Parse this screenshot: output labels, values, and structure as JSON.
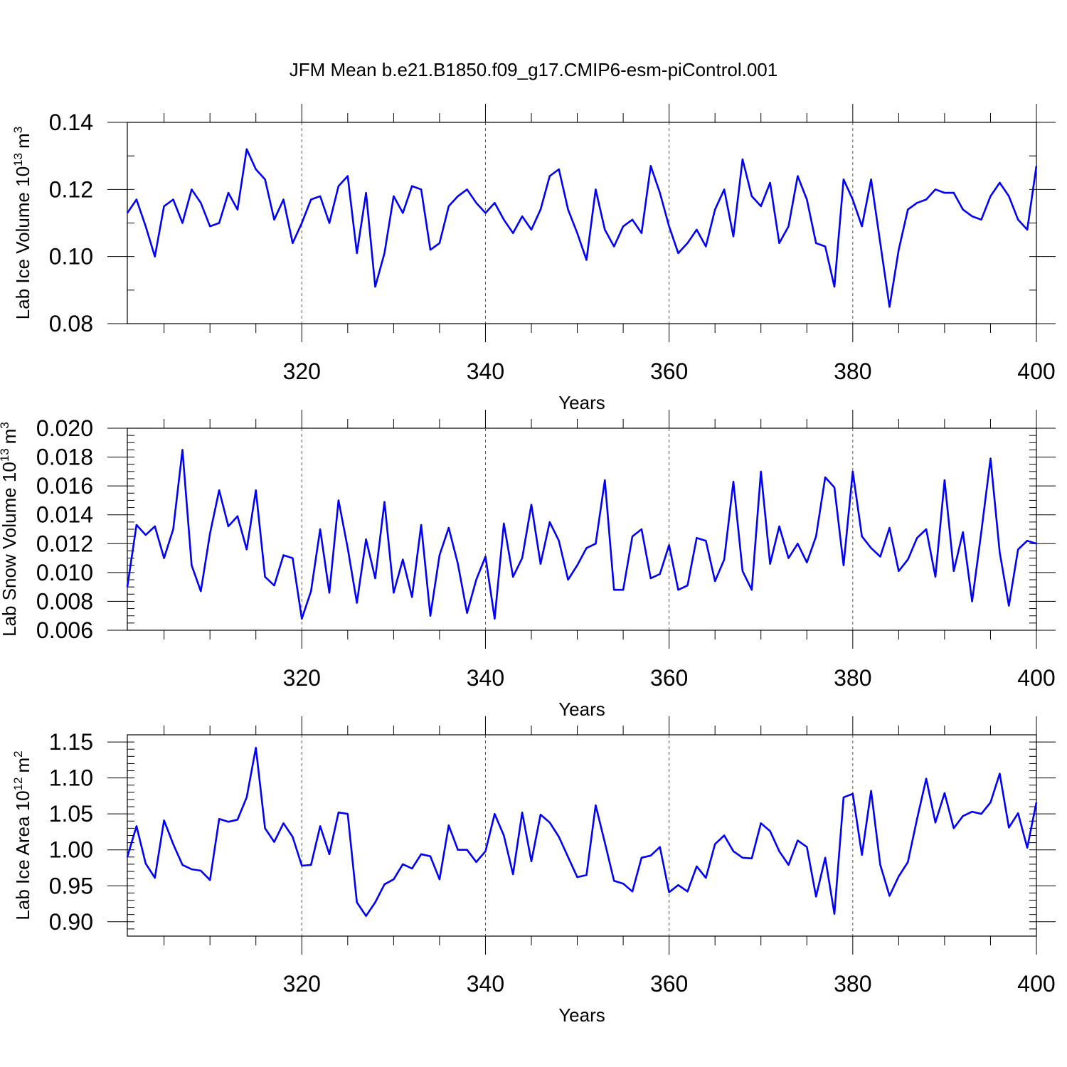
{
  "figure": {
    "title": "JFM Mean b.e21.B1850.f09_g17.CMIP6-esm-piControl.001",
    "line_color": "#0000ff"
  },
  "chart_data": [
    {
      "type": "line",
      "title": "JFM Mean b.e21.B1850.f09_g17.CMIP6-esm-piControl.001",
      "xlabel": "Years",
      "ylabel_main": "Lab Ice Volume 10",
      "ylabel_exp": "13",
      "ylabel_unit": "m",
      "ylabel_unit_exp": "3",
      "xlim": [
        301,
        400
      ],
      "ylim": [
        0.08,
        0.14
      ],
      "x_ticks": [
        320,
        340,
        360,
        380,
        400
      ],
      "x_tick_labels": [
        "320",
        "340",
        "360",
        "380",
        "400"
      ],
      "y_ticks": [
        0.08,
        0.1,
        0.12,
        0.14
      ],
      "y_tick_labels": [
        "0.08",
        "0.10",
        "0.12",
        "0.14"
      ],
      "y_minor_step": 0.01,
      "grid_x": [
        320,
        340,
        360,
        380
      ],
      "x_start": 301,
      "series": [
        {
          "name": "Lab Ice Volume",
          "values": [
            0.113,
            0.117,
            0.109,
            0.1,
            0.115,
            0.117,
            0.11,
            0.12,
            0.116,
            0.109,
            0.11,
            0.119,
            0.114,
            0.132,
            0.126,
            0.123,
            0.111,
            0.117,
            0.104,
            0.11,
            0.117,
            0.118,
            0.11,
            0.121,
            0.124,
            0.101,
            0.119,
            0.091,
            0.101,
            0.118,
            0.113,
            0.121,
            0.12,
            0.102,
            0.104,
            0.115,
            0.118,
            0.12,
            0.116,
            0.113,
            0.116,
            0.111,
            0.107,
            0.112,
            0.108,
            0.114,
            0.124,
            0.126,
            0.114,
            0.107,
            0.099,
            0.12,
            0.108,
            0.103,
            0.109,
            0.111,
            0.107,
            0.127,
            0.119,
            0.109,
            0.101,
            0.104,
            0.108,
            0.103,
            0.114,
            0.12,
            0.106,
            0.129,
            0.118,
            0.115,
            0.122,
            0.104,
            0.109,
            0.124,
            0.117,
            0.104,
            0.103,
            0.091,
            0.123,
            0.117,
            0.109,
            0.123,
            0.104,
            0.085,
            0.102,
            0.114,
            0.116,
            0.117,
            0.12,
            0.119,
            0.119,
            0.114,
            0.112,
            0.111,
            0.118,
            0.122,
            0.118,
            0.111,
            0.108,
            0.127
          ]
        }
      ]
    },
    {
      "type": "line",
      "xlabel": "Years",
      "ylabel_main": "Lab Snow Volume 10",
      "ylabel_exp": "13",
      "ylabel_unit": "m",
      "ylabel_unit_exp": "3",
      "xlim": [
        301,
        400
      ],
      "ylim": [
        0.006,
        0.02
      ],
      "x_ticks": [
        320,
        340,
        360,
        380,
        400
      ],
      "x_tick_labels": [
        "320",
        "340",
        "360",
        "380",
        "400"
      ],
      "y_ticks": [
        0.006,
        0.008,
        0.01,
        0.012,
        0.014,
        0.016,
        0.018,
        0.02
      ],
      "y_tick_labels": [
        "0.006",
        "0.008",
        "0.010",
        "0.012",
        "0.014",
        "0.016",
        "0.018",
        "0.020"
      ],
      "y_minor_step": 0.0005,
      "grid_x": [
        320,
        340,
        360,
        380
      ],
      "x_start": 301,
      "series": [
        {
          "name": "Lab Snow Volume",
          "values": [
            0.009,
            0.0133,
            0.0126,
            0.0132,
            0.011,
            0.013,
            0.0185,
            0.0105,
            0.0087,
            0.0127,
            0.0157,
            0.0132,
            0.0139,
            0.0116,
            0.0157,
            0.0097,
            0.0091,
            0.0112,
            0.011,
            0.0068,
            0.0087,
            0.013,
            0.0086,
            0.015,
            0.0117,
            0.0079,
            0.0123,
            0.0096,
            0.0149,
            0.0086,
            0.0109,
            0.0083,
            0.0133,
            0.007,
            0.0112,
            0.0131,
            0.0106,
            0.0072,
            0.0095,
            0.0111,
            0.0068,
            0.0134,
            0.0097,
            0.011,
            0.0147,
            0.0106,
            0.0135,
            0.0122,
            0.0095,
            0.0105,
            0.0117,
            0.012,
            0.0164,
            0.0088,
            0.0088,
            0.0125,
            0.013,
            0.0096,
            0.0099,
            0.0119,
            0.0088,
            0.0091,
            0.0124,
            0.0122,
            0.0094,
            0.0109,
            0.0163,
            0.0101,
            0.0088,
            0.017,
            0.0106,
            0.0132,
            0.011,
            0.012,
            0.0107,
            0.0125,
            0.0166,
            0.0159,
            0.0105,
            0.017,
            0.0125,
            0.0117,
            0.0111,
            0.0131,
            0.0101,
            0.0109,
            0.0124,
            0.013,
            0.0097,
            0.0164,
            0.0101,
            0.0128,
            0.008,
            0.0128,
            0.0179,
            0.0114,
            0.0077,
            0.0116,
            0.0122,
            0.012
          ]
        }
      ]
    },
    {
      "type": "line",
      "xlabel": "Years",
      "ylabel_main": "Lab Ice Area 10",
      "ylabel_exp": "12",
      "ylabel_unit": "m",
      "ylabel_unit_exp": "2",
      "xlim": [
        301,
        400
      ],
      "ylim": [
        0.88,
        1.16
      ],
      "x_ticks": [
        320,
        340,
        360,
        380,
        400
      ],
      "x_tick_labels": [
        "320",
        "340",
        "360",
        "380",
        "400"
      ],
      "y_ticks": [
        0.9,
        0.95,
        1.0,
        1.05,
        1.1,
        1.15
      ],
      "y_tick_labels": [
        "0.90",
        "0.95",
        "1.00",
        "1.05",
        "1.10",
        "1.15"
      ],
      "y_minor_step": 0.01,
      "grid_x": [
        320,
        340,
        360,
        380
      ],
      "x_start": 301,
      "series": [
        {
          "name": "Lab Ice Area",
          "values": [
            0.99,
            1.033,
            0.981,
            0.961,
            1.041,
            1.008,
            0.979,
            0.973,
            0.971,
            0.958,
            1.043,
            1.039,
            1.042,
            1.073,
            1.142,
            1.03,
            1.011,
            1.037,
            1.018,
            0.978,
            0.979,
            1.033,
            0.994,
            1.052,
            1.05,
            0.927,
            0.908,
            0.927,
            0.952,
            0.959,
            0.98,
            0.974,
            0.994,
            0.991,
            0.959,
            1.034,
            1.0,
            1.0,
            0.983,
            0.998,
            1.05,
            1.02,
            0.966,
            1.052,
            0.984,
            1.049,
            1.038,
            1.018,
            0.99,
            0.962,
            0.965,
            1.062,
            1.01,
            0.957,
            0.953,
            0.942,
            0.989,
            0.992,
            1.004,
            0.941,
            0.951,
            0.942,
            0.977,
            0.961,
            1.008,
            1.02,
            0.998,
            0.989,
            0.988,
            1.037,
            1.026,
            0.998,
            0.979,
            1.013,
            1.004,
            0.935,
            0.989,
            0.911,
            1.073,
            1.078,
            0.993,
            1.082,
            0.979,
            0.936,
            0.963,
            0.983,
            1.043,
            1.099,
            1.038,
            1.079,
            1.03,
            1.047,
            1.053,
            1.05,
            1.066,
            1.106,
            1.031,
            1.051,
            1.003,
            1.066
          ]
        }
      ]
    }
  ]
}
